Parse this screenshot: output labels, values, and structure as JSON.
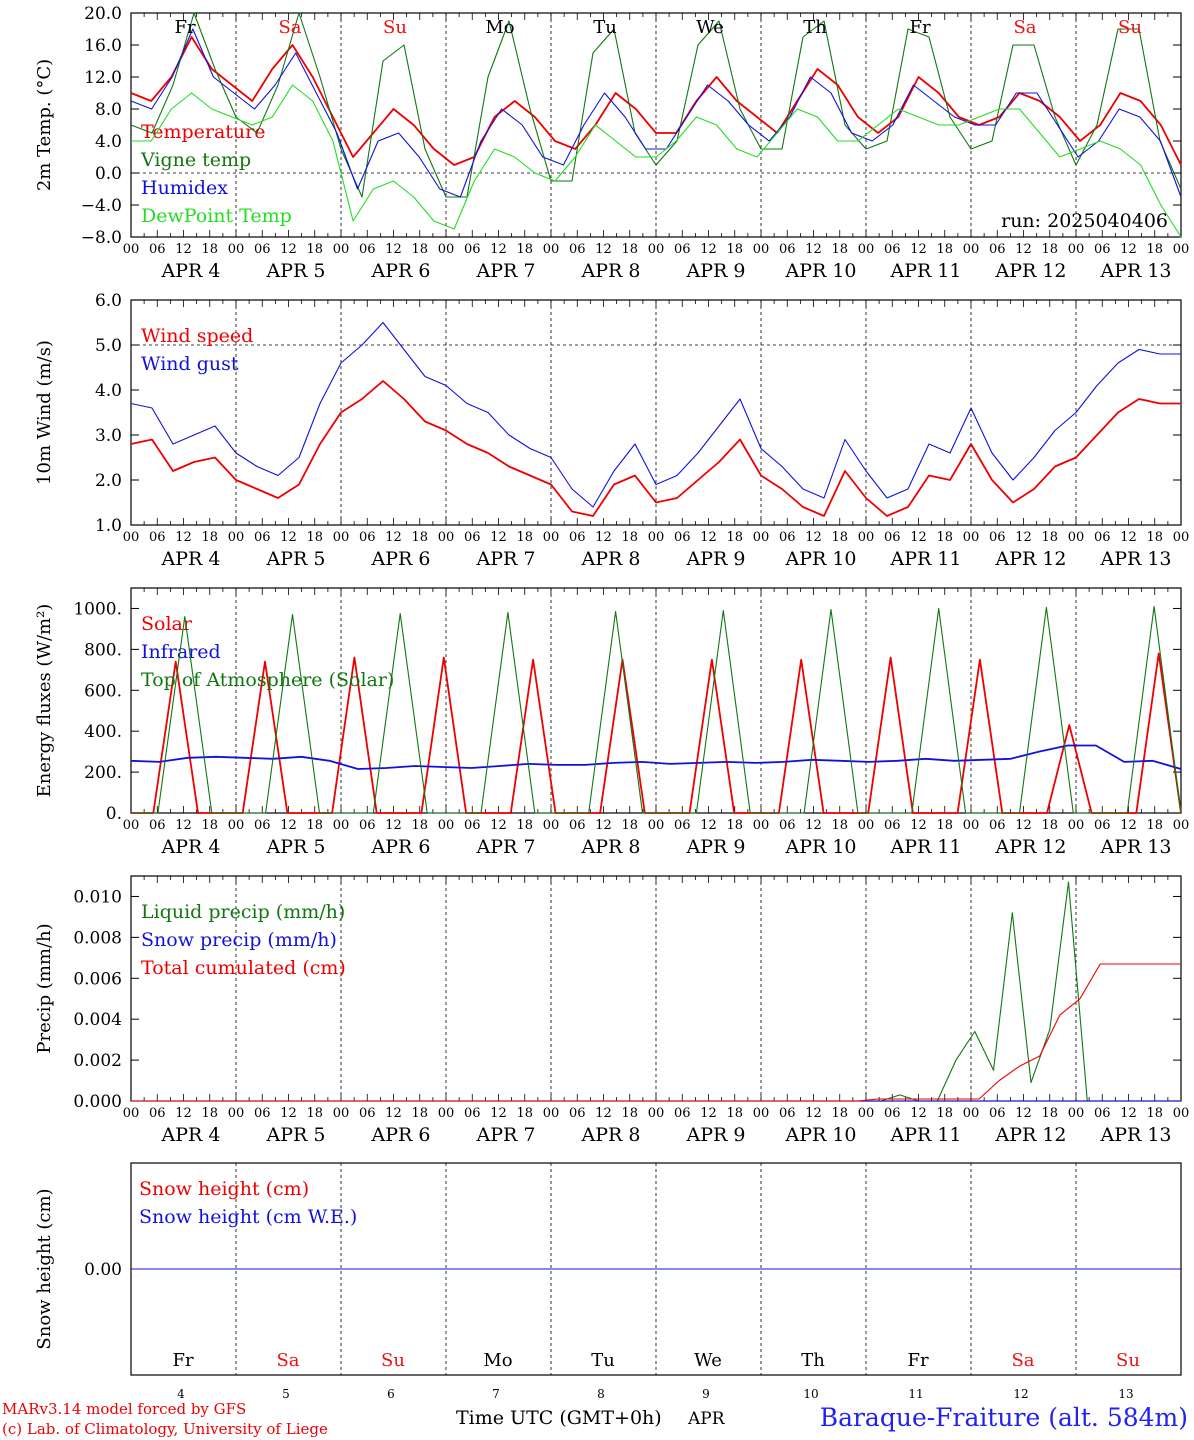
{
  "footer": {
    "model_line": "MARv3.14 model forced by GFS",
    "copyright_line": "(c) Lab. of Climatology, University of Liege",
    "time_label": "Time UTC (GMT+0h)",
    "month_label": "APR",
    "station": "Baraque-Fraiture (alt. 584m)"
  },
  "days": {
    "weekdays": [
      "Fr",
      "Sa",
      "Su",
      "Mo",
      "Tu",
      "We",
      "Th",
      "Fr",
      "Sa",
      "Su"
    ],
    "weekend": [
      false,
      true,
      true,
      false,
      false,
      false,
      false,
      false,
      true,
      true
    ],
    "dates": [
      "APR 4",
      "APR 5",
      "APR 6",
      "APR 7",
      "APR 8",
      "APR 9",
      "APR 10",
      "APR 11",
      "APR 12",
      "APR 13"
    ],
    "day_numbers": [
      "4",
      "5",
      "6",
      "7",
      "8",
      "9",
      "10",
      "11",
      "12",
      "13"
    ],
    "hour_ticks": [
      "00",
      "06",
      "12",
      "18"
    ],
    "end_tick": "00"
  },
  "colors": {
    "red": "#ee0000",
    "green": "#117711",
    "blue": "#1111dd",
    "light_green": "#22dd22",
    "weekend_red": "#ee1111"
  },
  "chart_data": [
    {
      "type": "line",
      "ylabel": "2m Temp. (°C)",
      "ylim": [
        -8,
        20
      ],
      "yticks": [
        "20.0",
        "16.0",
        "12.0",
        "8.0",
        "4.0",
        "0.0",
        "−4.0",
        "−8.0"
      ],
      "annotation": "run: 2025040406",
      "x_hours_step": 6,
      "series": [
        {
          "name": "Temperature",
          "values": [
            10,
            9,
            12,
            17,
            13,
            11,
            9,
            13,
            16,
            12,
            7,
            2,
            5,
            8,
            6,
            3,
            1,
            2,
            7,
            9,
            7,
            4,
            3,
            6,
            10,
            8,
            5,
            5,
            9,
            12,
            9,
            7,
            5,
            9,
            13,
            11,
            7,
            5,
            7,
            12,
            10,
            7,
            6,
            7,
            10,
            9,
            7,
            4,
            6,
            10,
            9,
            6,
            1
          ]
        },
        {
          "name": "Vigne temp",
          "values": [
            6,
            5,
            11,
            20,
            13,
            7,
            5,
            11,
            20,
            12,
            3,
            -3,
            14,
            16,
            3,
            -3,
            -3,
            12,
            19,
            8,
            -1,
            -1,
            15,
            18,
            5,
            1,
            4,
            16,
            19,
            8,
            3,
            3,
            17,
            19,
            6,
            3,
            4,
            18,
            17,
            7,
            3,
            4,
            16,
            16,
            7,
            1,
            6,
            18,
            18,
            4,
            -2
          ]
        },
        {
          "name": "Humidex",
          "values": [
            9,
            8,
            12,
            18,
            12,
            10,
            8,
            11,
            15,
            10,
            5,
            -2,
            4,
            5,
            2,
            -2,
            -3,
            4,
            8,
            6,
            2,
            1,
            6,
            10,
            7,
            3,
            3,
            7,
            11,
            9,
            6,
            4,
            7,
            12,
            10,
            5,
            4,
            6,
            11,
            9,
            7,
            6,
            6,
            10,
            10,
            6,
            2,
            4,
            8,
            7,
            4,
            -3
          ]
        },
        {
          "name": "DewPoint Temp",
          "values": [
            4,
            4,
            8,
            10,
            8,
            7,
            6,
            7,
            11,
            9,
            4,
            -6,
            -2,
            -1,
            -3,
            -6,
            -7,
            -1,
            3,
            2,
            0,
            -1,
            2,
            6,
            4,
            2,
            2,
            4,
            7,
            6,
            3,
            2,
            5,
            8,
            7,
            4,
            4,
            6,
            8,
            7,
            6,
            6,
            7,
            8,
            8,
            5,
            2,
            3,
            4,
            3,
            1,
            -4,
            -8
          ]
        }
      ]
    },
    {
      "type": "line",
      "ylabel": "10m Wind (m/s)",
      "ylim": [
        1,
        6
      ],
      "yticks": [
        "6.0",
        "5.0",
        "4.0",
        "3.0",
        "2.0",
        "1.0"
      ],
      "x_hours_step": 6,
      "series": [
        {
          "name": "Wind speed",
          "values": [
            2.8,
            2.9,
            2.2,
            2.4,
            2.5,
            2.0,
            1.8,
            1.6,
            1.9,
            2.8,
            3.5,
            3.8,
            4.2,
            3.8,
            3.3,
            3.1,
            2.8,
            2.6,
            2.3,
            2.1,
            1.9,
            1.3,
            1.2,
            1.9,
            2.1,
            1.5,
            1.6,
            2.0,
            2.4,
            2.9,
            2.1,
            1.8,
            1.4,
            1.2,
            2.2,
            1.6,
            1.2,
            1.4,
            2.1,
            2.0,
            2.8,
            2.0,
            1.5,
            1.8,
            2.3,
            2.5,
            3.0,
            3.5,
            3.8,
            3.7,
            3.7
          ]
        },
        {
          "name": "Wind gust",
          "values": [
            3.7,
            3.6,
            2.8,
            3.0,
            3.2,
            2.6,
            2.3,
            2.1,
            2.5,
            3.7,
            4.6,
            5.0,
            5.5,
            4.9,
            4.3,
            4.1,
            3.7,
            3.5,
            3.0,
            2.7,
            2.5,
            1.8,
            1.4,
            2.2,
            2.8,
            1.9,
            2.1,
            2.6,
            3.2,
            3.8,
            2.7,
            2.3,
            1.8,
            1.6,
            2.9,
            2.2,
            1.6,
            1.8,
            2.8,
            2.6,
            3.6,
            2.6,
            2.0,
            2.5,
            3.1,
            3.5,
            4.1,
            4.6,
            4.9,
            4.8,
            4.8
          ]
        }
      ]
    },
    {
      "type": "line",
      "ylabel": "Energy fluxes (W/m²)",
      "ylim": [
        0,
        1100
      ],
      "yticks": [
        "1000.",
        "800.",
        "600.",
        "400.",
        "200.",
        "0."
      ],
      "x_hours_step": 6,
      "series": [
        {
          "name": "Solar",
          "values": [
            0,
            0,
            740,
            0,
            0,
            0,
            740,
            0,
            0,
            0,
            760,
            0,
            0,
            0,
            760,
            0,
            0,
            0,
            750,
            0,
            0,
            0,
            750,
            0,
            0,
            0,
            750,
            0,
            0,
            0,
            750,
            0,
            0,
            0,
            760,
            0,
            0,
            0,
            750,
            0,
            0,
            0,
            430,
            0,
            0,
            0,
            780,
            0
          ]
        },
        {
          "name": "Infrared",
          "values": [
            255,
            250,
            270,
            275,
            270,
            265,
            275,
            255,
            215,
            220,
            230,
            225,
            220,
            230,
            240,
            235,
            235,
            245,
            250,
            240,
            245,
            250,
            245,
            250,
            260,
            255,
            250,
            255,
            265,
            255,
            260,
            265,
            300,
            330,
            330,
            250,
            255,
            215
          ]
        },
        {
          "name": "Top of Atmosphere (Solar)",
          "values": [
            0,
            0,
            960,
            0,
            0,
            0,
            970,
            0,
            0,
            0,
            975,
            0,
            0,
            0,
            980,
            0,
            0,
            0,
            985,
            0,
            0,
            0,
            990,
            0,
            0,
            0,
            995,
            0,
            0,
            0,
            1000,
            0,
            0,
            0,
            1005,
            0,
            0,
            0,
            1010,
            0
          ]
        }
      ]
    },
    {
      "type": "line",
      "ylabel": "Precip (mm/h)",
      "ylim": [
        0,
        0.011
      ],
      "yticks": [
        "0.010",
        "0.008",
        "0.006",
        "0.004",
        "0.002",
        "0.000"
      ],
      "x_hours_step": 6,
      "series": [
        {
          "name": "Liquid precip (mm/h)",
          "values": [
            0,
            0,
            0,
            0,
            0,
            0,
            0,
            0,
            0,
            0,
            0,
            0,
            0,
            0,
            0,
            0,
            0,
            0,
            0,
            0,
            0,
            0,
            0,
            0,
            0,
            0,
            0,
            0,
            0,
            0,
            0,
            0,
            0,
            0,
            0,
            0,
            0,
            0,
            0,
            0,
            0,
            0.0003,
            0,
            0,
            0.002,
            0.0034,
            0.0015,
            0.0092,
            0.0009,
            0.0035,
            0.0107,
            0,
            0,
            0,
            0,
            0,
            0
          ]
        },
        {
          "name": "Snow precip (mm/h)",
          "values": [
            0,
            0,
            0,
            0,
            0,
            0,
            0,
            0,
            0,
            0,
            0,
            0,
            0,
            0,
            0,
            0,
            0,
            0,
            0,
            0,
            0,
            0,
            0,
            0,
            0,
            0,
            0,
            0,
            0,
            0,
            0,
            0,
            0,
            0,
            0,
            0,
            0,
            0,
            0,
            0,
            0,
            0,
            0,
            0,
            0,
            0,
            0,
            0,
            0,
            0,
            0
          ]
        },
        {
          "name": "Total cumulated (cm)",
          "values": [
            0,
            0,
            0,
            0,
            0,
            0,
            0,
            0,
            0,
            0,
            0,
            0,
            0,
            0,
            0,
            0,
            0,
            0,
            0,
            0,
            0,
            0,
            0,
            0,
            0,
            0,
            0,
            0,
            0,
            0,
            0,
            0,
            0,
            0,
            0,
            0,
            0,
            0.0001,
            0.0001,
            0.0001,
            0.0001,
            0.0001,
            0.0001,
            0.001,
            0.0017,
            0.0022,
            0.0042,
            0.005,
            0.0067,
            0.0067,
            0.0067,
            0.0067,
            0.0067
          ]
        }
      ]
    },
    {
      "type": "line",
      "ylabel": "Snow height (cm)",
      "ylim": [
        -1,
        1
      ],
      "yticks": [
        "0.00"
      ],
      "x_hours_step": 6,
      "series": [
        {
          "name": "Snow height (cm)",
          "values": [
            0,
            0
          ]
        },
        {
          "name": "Snow height (cm W.E.)",
          "values": [
            0,
            0
          ]
        }
      ]
    }
  ]
}
